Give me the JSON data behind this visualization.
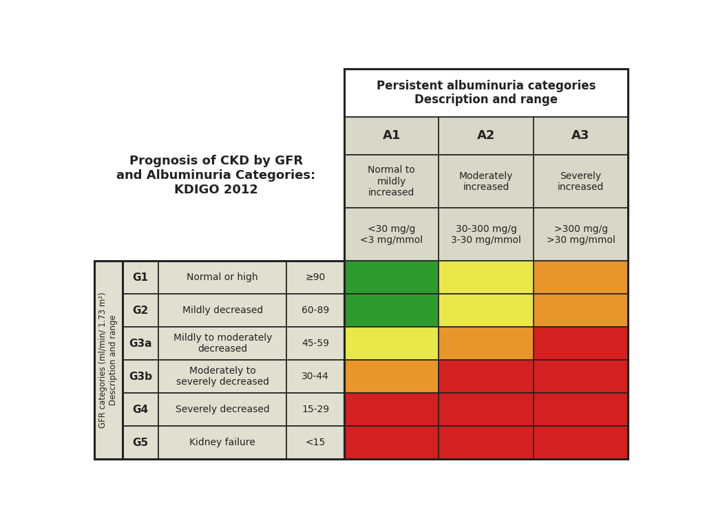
{
  "title_text": "Prognosis of CKD by GFR\nand Albuminuria Categories:\nKDIGO 2012",
  "header_title": "Persistent albuminuria categories\nDescription and range",
  "col_headers": [
    "A1",
    "A2",
    "A3"
  ],
  "col_desc": [
    "Normal to\nmildly\nincreased",
    "Moderately\nincreased",
    "Severely\nincreased"
  ],
  "col_range": [
    "<30 mg/g\n<3 mg/mmol",
    "30-300 mg/g\n3-30 mg/mmol",
    ">300 mg/g\n>30 mg/mmol"
  ],
  "row_labels": [
    "G1",
    "G2",
    "G3a",
    "G3b",
    "G4",
    "G5"
  ],
  "row_desc": [
    "Normal or high",
    "Mildly decreased",
    "Mildly to moderately\ndecreased",
    "Moderately to\nseverely decreased",
    "Severely decreased",
    "Kidney failure"
  ],
  "row_range": [
    "≥90",
    "60-89",
    "45-59",
    "30-44",
    "15-29",
    "<15"
  ],
  "y_axis_label": "GFR categories (ml/min/ 1.73 m²)\nDescription and range",
  "cell_colors": [
    [
      "#2e9b2e",
      "#e8e84a",
      "#e8952a"
    ],
    [
      "#2e9b2e",
      "#e8e84a",
      "#e8952a"
    ],
    [
      "#e8e84a",
      "#e8952a",
      "#d42020"
    ],
    [
      "#e8952a",
      "#d42020",
      "#d42020"
    ],
    [
      "#d42020",
      "#d42020",
      "#d42020"
    ],
    [
      "#d42020",
      "#d42020",
      "#d42020"
    ]
  ],
  "header_bg": "#d8d8c8",
  "row_bg": "#e0e0d0",
  "border_color": "#222222",
  "text_color": "#222222",
  "background_color": "#ffffff"
}
